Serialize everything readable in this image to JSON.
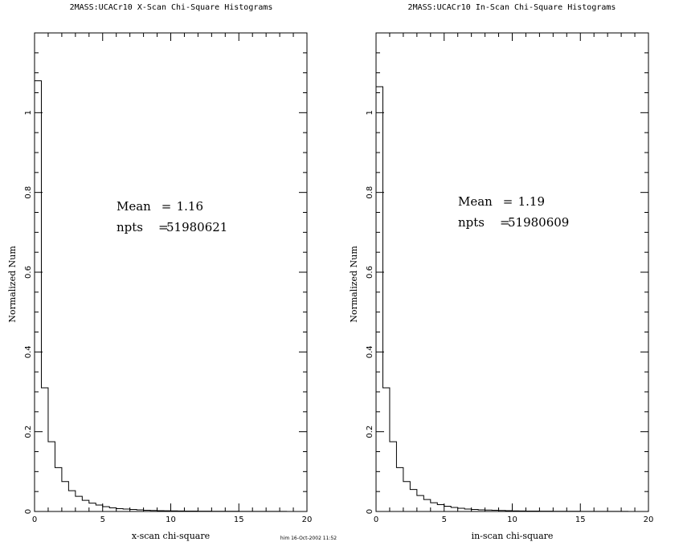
{
  "footer": "him 16-Oct-2002 11:52",
  "chart_data": [
    {
      "type": "bar",
      "title": "2MASS:UCACr10 X-Scan Chi-Square Histograms",
      "xlabel": "x-scan chi-square",
      "ylabel": "Normalized Num",
      "xlim": [
        0,
        20
      ],
      "ylim": [
        0,
        1.2
      ],
      "xticks": [
        0,
        5,
        10,
        15,
        20
      ],
      "yticks": [
        0,
        0.2,
        0.4,
        0.6,
        0.8,
        1
      ],
      "xtick_labels": [
        "0",
        "5",
        "10",
        "15",
        "20"
      ],
      "ytick_labels": [
        "0",
        "0.2",
        "0.4",
        "0.6",
        "0.8",
        "1"
      ],
      "bin_width": 0.5,
      "x": [
        0,
        0.5,
        1,
        1.5,
        2,
        2.5,
        3,
        3.5,
        4,
        4.5,
        5,
        5.5,
        6,
        6.5,
        7,
        7.5,
        8,
        8.5,
        9,
        9.5,
        10,
        10.5,
        11,
        11.5,
        12,
        12.5,
        13,
        13.5,
        14,
        14.5,
        15,
        15.5,
        16,
        16.5,
        17,
        17.5,
        18,
        18.5,
        19,
        19.5
      ],
      "values": [
        1.08,
        0.31,
        0.175,
        0.11,
        0.075,
        0.052,
        0.038,
        0.028,
        0.021,
        0.016,
        0.012,
        0.009,
        0.007,
        0.006,
        0.005,
        0.004,
        0.003,
        0.0025,
        0.002,
        0.0017,
        0.0015,
        0.0012,
        0.001,
        0.0009,
        0.0008,
        0.0007,
        0.0006,
        0.0005,
        0.0004,
        0.0004,
        0.0003,
        0.0003,
        0.0003,
        0.0002,
        0.0002,
        0.0002,
        0.0002,
        0.0001,
        0.0001,
        0.0001
      ],
      "annotations": [
        {
          "label": "Mean",
          "eq": "=",
          "value": "1.16"
        },
        {
          "label": "npts",
          "eq": "=",
          "value": "51980621"
        }
      ]
    },
    {
      "type": "bar",
      "title": "2MASS:UCACr10 In-Scan Chi-Square Histograms",
      "xlabel": "in-scan chi-square",
      "ylabel": "Normalized Num",
      "xlim": [
        0,
        20
      ],
      "ylim": [
        0,
        1.2
      ],
      "xticks": [
        0,
        5,
        10,
        15,
        20
      ],
      "yticks": [
        0,
        0.2,
        0.4,
        0.6,
        0.8,
        1
      ],
      "xtick_labels": [
        "0",
        "5",
        "10",
        "15",
        "20"
      ],
      "ytick_labels": [
        "0",
        "0.2",
        "0.4",
        "0.6",
        "0.8",
        "1"
      ],
      "bin_width": 0.5,
      "x": [
        0,
        0.5,
        1,
        1.5,
        2,
        2.5,
        3,
        3.5,
        4,
        4.5,
        5,
        5.5,
        6,
        6.5,
        7,
        7.5,
        8,
        8.5,
        9,
        9.5,
        10,
        10.5,
        11,
        11.5,
        12,
        12.5,
        13,
        13.5,
        14,
        14.5,
        15,
        15.5,
        16,
        16.5,
        17,
        17.5,
        18,
        18.5,
        19,
        19.5
      ],
      "values": [
        1.065,
        0.31,
        0.175,
        0.11,
        0.075,
        0.055,
        0.04,
        0.03,
        0.022,
        0.017,
        0.013,
        0.01,
        0.008,
        0.006,
        0.005,
        0.004,
        0.0035,
        0.003,
        0.0025,
        0.002,
        0.0016,
        0.0013,
        0.0011,
        0.0009,
        0.0008,
        0.0007,
        0.0006,
        0.0005,
        0.0004,
        0.0004,
        0.0003,
        0.0003,
        0.0003,
        0.0002,
        0.0002,
        0.0002,
        0.0002,
        0.0001,
        0.0001,
        0.0001
      ],
      "annotations": [
        {
          "label": "Mean",
          "eq": "=",
          "value": "1.19"
        },
        {
          "label": "npts",
          "eq": "=",
          "value": "51980609"
        }
      ]
    }
  ]
}
